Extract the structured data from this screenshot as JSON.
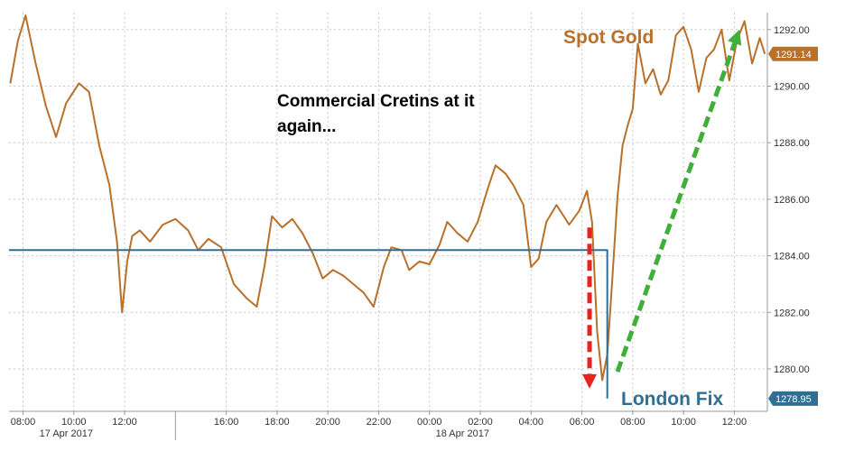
{
  "chart_data": {
    "type": "line",
    "annotation": "Commercial Cretins at it again...",
    "y_ticks": [
      "1292.00",
      "1290.00",
      "1288.00",
      "1286.00",
      "1284.00",
      "1282.00",
      "1280.00"
    ],
    "ylim": [
      1278.5,
      1292.6
    ],
    "x_tick_labels": [
      "08:00",
      "10:00",
      "12:00",
      "16:00",
      "18:00",
      "20:00",
      "22:00",
      "00:00",
      "02:00",
      "04:00",
      "06:00",
      "08:00",
      "10:00",
      "12:00"
    ],
    "x_tick_hours": [
      8,
      10,
      12,
      16,
      18,
      20,
      22,
      24,
      26,
      28,
      30,
      32,
      34,
      36
    ],
    "date_labels": [
      {
        "text": "17 Apr 2017",
        "hour": 9.7
      },
      {
        "text": "18 Apr 2017",
        "hour": 25.3
      }
    ],
    "session_divider_hour": 14,
    "xlim_hours": [
      7.45,
      37.3
    ],
    "series": [
      {
        "name": "Spot Gold",
        "color": "#b8702a",
        "last_value": "1291.14",
        "x_hours": [
          7.5,
          7.8,
          8.1,
          8.5,
          8.9,
          9.3,
          9.7,
          10.2,
          10.6,
          11.0,
          11.4,
          11.7,
          11.9,
          12.1,
          12.3,
          12.6,
          13.0,
          13.5,
          14.0,
          14.5,
          14.9,
          15.3,
          15.8,
          16.3,
          16.8,
          17.2,
          17.5,
          17.8,
          18.2,
          18.6,
          19.0,
          19.4,
          19.8,
          20.2,
          20.6,
          21.0,
          21.4,
          21.8,
          22.2,
          22.5,
          22.9,
          23.2,
          23.6,
          24.0,
          24.4,
          24.7,
          25.1,
          25.5,
          25.9,
          26.3,
          26.6,
          27.0,
          27.3,
          27.7,
          28.0,
          28.3,
          28.6,
          29.0,
          29.5,
          29.9,
          30.2,
          30.4,
          30.6,
          30.8,
          31.0,
          31.2,
          31.4,
          31.6,
          31.8,
          32.0,
          32.2,
          32.5,
          32.8,
          33.1,
          33.4,
          33.7,
          34.0,
          34.3,
          34.6,
          34.9,
          35.2,
          35.5,
          35.8,
          36.1,
          36.4,
          36.7,
          37.0,
          37.2
        ],
        "values": [
          1290.1,
          1291.6,
          1292.5,
          1290.8,
          1289.3,
          1288.2,
          1289.4,
          1290.1,
          1289.8,
          1287.9,
          1286.5,
          1284.5,
          1282.0,
          1283.8,
          1284.7,
          1284.9,
          1284.5,
          1285.1,
          1285.3,
          1284.9,
          1284.2,
          1284.6,
          1284.3,
          1283.0,
          1282.5,
          1282.2,
          1283.6,
          1285.4,
          1285.0,
          1285.3,
          1284.8,
          1284.1,
          1283.2,
          1283.5,
          1283.3,
          1283.0,
          1282.7,
          1282.2,
          1283.6,
          1284.3,
          1284.2,
          1283.5,
          1283.8,
          1283.7,
          1284.4,
          1285.2,
          1284.8,
          1284.5,
          1285.2,
          1286.4,
          1287.2,
          1286.9,
          1286.5,
          1285.8,
          1283.6,
          1283.9,
          1285.2,
          1285.8,
          1285.1,
          1285.6,
          1286.3,
          1285.2,
          1281.3,
          1279.6,
          1280.5,
          1283.2,
          1286.1,
          1287.9,
          1288.6,
          1289.2,
          1291.5,
          1290.1,
          1290.6,
          1289.7,
          1290.2,
          1291.8,
          1292.1,
          1291.3,
          1289.8,
          1291.0,
          1291.3,
          1292.0,
          1290.2,
          1291.6,
          1292.3,
          1290.8,
          1291.7,
          1291.14
        ]
      },
      {
        "name": "London Fix",
        "color": "#2f6f95",
        "last_value": "1278.95",
        "x_hours": [
          7.45,
          31.0,
          31.0
        ],
        "values": [
          1284.2,
          1284.2,
          1278.95
        ]
      }
    ],
    "arrows": [
      {
        "name": "red-down-arrow",
        "color": "#e8231f",
        "from": {
          "hour": 30.3,
          "value": 1285.0
        },
        "to": {
          "hour": 30.3,
          "value": 1279.3
        }
      },
      {
        "name": "green-up-arrow",
        "color": "#3fae3a",
        "from": {
          "hour": 31.4,
          "value": 1279.9
        },
        "to": {
          "hour": 36.2,
          "value": 1292.0
        }
      }
    ]
  }
}
